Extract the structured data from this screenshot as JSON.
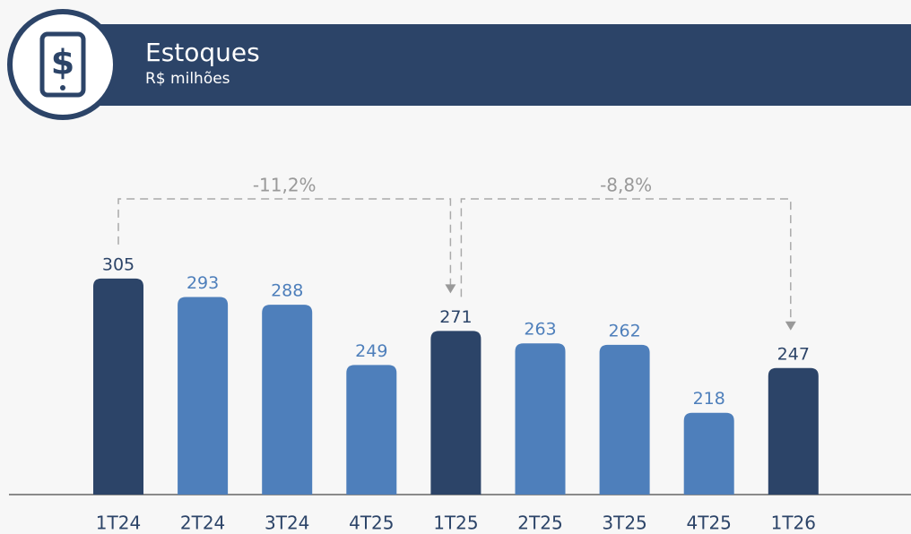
{
  "chart_data": {
    "type": "bar",
    "title": "Estoques",
    "subtitle": "R$ milhões",
    "categories": [
      "1T24",
      "2T24",
      "3T24",
      "4T25",
      "1T25",
      "2T25",
      "3T25",
      "4T25",
      "1T26"
    ],
    "values": [
      305,
      293,
      288,
      249,
      271,
      263,
      262,
      218,
      247
    ],
    "colors": [
      "#2c4468",
      "#4e7fbb",
      "#4e7fbb",
      "#4e7fbb",
      "#2c4468",
      "#4e7fbb",
      "#4e7fbb",
      "#4e7fbb",
      "#2c4468"
    ],
    "ylim": [
      165,
      410
    ],
    "annotations": [
      "-11,2%",
      "-8,8%"
    ]
  }
}
